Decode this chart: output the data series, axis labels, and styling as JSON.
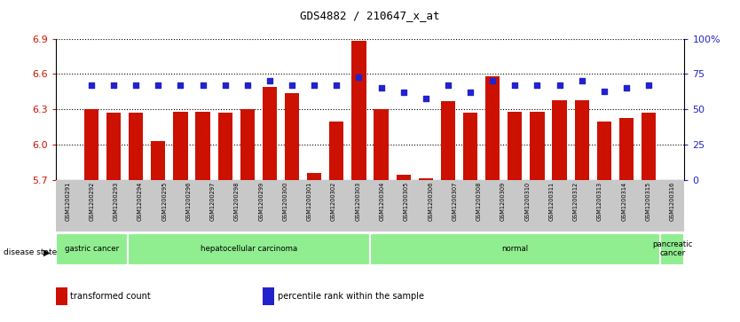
{
  "title": "GDS4882 / 210647_x_at",
  "samples": [
    "GSM1200291",
    "GSM1200292",
    "GSM1200293",
    "GSM1200294",
    "GSM1200295",
    "GSM1200296",
    "GSM1200297",
    "GSM1200298",
    "GSM1200299",
    "GSM1200300",
    "GSM1200301",
    "GSM1200302",
    "GSM1200303",
    "GSM1200304",
    "GSM1200305",
    "GSM1200306",
    "GSM1200307",
    "GSM1200308",
    "GSM1200309",
    "GSM1200310",
    "GSM1200311",
    "GSM1200312",
    "GSM1200313",
    "GSM1200314",
    "GSM1200315",
    "GSM1200316"
  ],
  "red_values": [
    6.3,
    6.27,
    6.27,
    6.03,
    6.28,
    6.28,
    6.27,
    6.3,
    6.49,
    6.44,
    5.76,
    6.2,
    6.88,
    6.3,
    5.75,
    5.72,
    6.37,
    6.27,
    6.58,
    6.28,
    6.28,
    6.38,
    6.38,
    6.2,
    6.23,
    6.27
  ],
  "blue_values": [
    67,
    67,
    67,
    67,
    67,
    67,
    67,
    67,
    70,
    67,
    67,
    67,
    73,
    65,
    62,
    58,
    67,
    62,
    70,
    67,
    67,
    67,
    70,
    63,
    65,
    67
  ],
  "ylim_left": [
    5.7,
    6.9
  ],
  "ylim_right": [
    0,
    100
  ],
  "yticks_left": [
    5.7,
    6.0,
    6.3,
    6.6,
    6.9
  ],
  "yticks_right": [
    0,
    25,
    50,
    75,
    100
  ],
  "ytick_labels_right": [
    "0",
    "25",
    "50",
    "75",
    "100%"
  ],
  "bar_color": "#CC1100",
  "dot_color": "#2222CC",
  "group_color": "#90EE90",
  "disease_state_label": "disease state",
  "disease_groups": [
    {
      "label": "gastric cancer",
      "start": 0,
      "end": 2
    },
    {
      "label": "hepatocellular carcinoma",
      "start": 3,
      "end": 12
    },
    {
      "label": "normal",
      "start": 13,
      "end": 24
    },
    {
      "label": "pancreatic\ncancer",
      "start": 25,
      "end": 25
    }
  ],
  "legend_items": [
    {
      "color": "#CC1100",
      "label": "transformed count"
    },
    {
      "color": "#2222CC",
      "label": "percentile rank within the sample"
    }
  ],
  "axis_color_left": "#CC1100",
  "axis_color_right": "#2222CC"
}
